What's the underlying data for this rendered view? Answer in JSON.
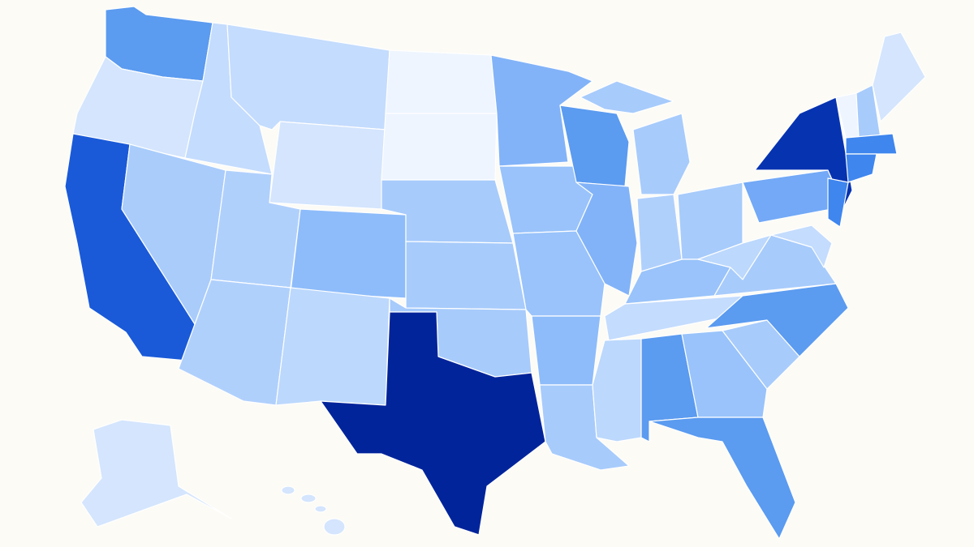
{
  "map": {
    "regions": [
      {
        "color": "#5b9bf0"
      },
      {
        "color": "#d4e5fd"
      },
      {
        "color": "#1a5ad8"
      },
      {
        "color": "#a9ccfb"
      },
      {
        "color": "#c4dcfd"
      },
      {
        "color": "#c4dcfd"
      },
      {
        "color": "#d4e5fd"
      },
      {
        "color": "#b0d0fc"
      },
      {
        "color": "#b0d0fc"
      },
      {
        "color": "#8ebcfa"
      },
      {
        "color": "#bcd8fc"
      },
      {
        "color": "#eef5ff"
      },
      {
        "color": "#eef5ff"
      },
      {
        "color": "#a7cbfb"
      },
      {
        "color": "#a7cbfb"
      },
      {
        "color": "#a7cbfb"
      },
      {
        "color": "#02249a"
      },
      {
        "color": "#82b3f8"
      },
      {
        "color": "#99c3fa"
      },
      {
        "color": "#99c3fa"
      },
      {
        "color": "#8ebcfa"
      },
      {
        "color": "#a7cbfb"
      },
      {
        "color": "#5b9bf0"
      },
      {
        "color": "#82b3f8"
      },
      {
        "color": "#a7cbfb"
      },
      {
        "color": "#a7cbfb"
      },
      {
        "color": "#b0d0fc"
      },
      {
        "color": "#a7cbfb"
      },
      {
        "color": "#99c3fa"
      },
      {
        "color": "#c4dcfd"
      },
      {
        "color": "#bcd8fc"
      },
      {
        "color": "#5b9bf0"
      },
      {
        "color": "#99c3fa"
      },
      {
        "color": "#5b9bf0"
      },
      {
        "color": "#a7cbfb"
      },
      {
        "color": "#5b9bf0"
      },
      {
        "color": "#a7cbfb"
      },
      {
        "color": "#bcd8fc"
      },
      {
        "color": "#73a9f6"
      },
      {
        "color": "#0633b0"
      },
      {
        "color": "#3f86ee"
      },
      {
        "color": "#c4dcfd"
      },
      {
        "color": "#eef5ff"
      },
      {
        "color": "#a7cbfb"
      },
      {
        "color": "#d4e5fd"
      },
      {
        "color": "#3f86ee"
      },
      {
        "color": "#3f86ee"
      },
      {
        "color": "#d4e5fd"
      }
    ]
  }
}
